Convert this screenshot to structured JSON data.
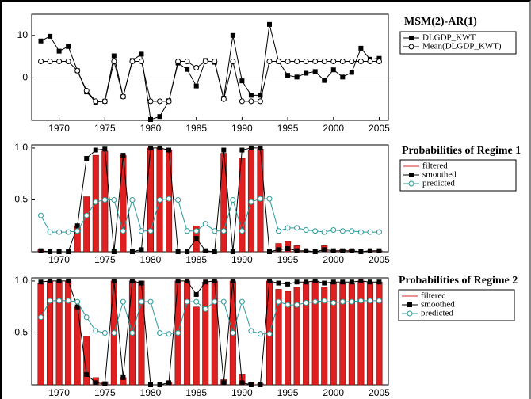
{
  "chart_data": [
    {
      "type": "line",
      "title": "MSM(2)-AR(1)",
      "x": [
        1968,
        1969,
        1970,
        1971,
        1972,
        1973,
        1974,
        1975,
        1976,
        1977,
        1978,
        1979,
        1980,
        1981,
        1982,
        1983,
        1984,
        1985,
        1986,
        1987,
        1988,
        1989,
        1990,
        1991,
        1992,
        1993,
        1994,
        1995,
        1996,
        1997,
        1998,
        1999,
        2000,
        2001,
        2002,
        2003,
        2004,
        2005
      ],
      "xlim": [
        1967,
        2006
      ],
      "xticks": [
        1970,
        1975,
        1980,
        1985,
        1990,
        1995,
        2000,
        2005
      ],
      "ylim": [
        -10,
        15
      ],
      "yticks": [
        0,
        10
      ],
      "zero_line": true,
      "series": [
        {
          "name": "DLGDP_KWT",
          "color": "#000000",
          "marker": "square",
          "values": [
            8.7,
            9.8,
            6.3,
            7.4,
            1.7,
            -3.3,
            -5.7,
            -5.5,
            5.2,
            -4.4,
            4.1,
            5.6,
            -9.8,
            -9.1,
            -5.4,
            3.5,
            2.0,
            -1.9,
            4.1,
            3.7,
            -4.8,
            10,
            -0.7,
            -4.1,
            -4.1,
            12.6,
            3.9,
            0.6,
            0.2,
            1.1,
            1.5,
            -0.6,
            1.9,
            0.2,
            1.3,
            7.0,
            4.4,
            4.6
          ]
        },
        {
          "name": "Mean(DLGDP_KWT)",
          "color": "#000000",
          "marker": "circle",
          "values": [
            3.9,
            3.9,
            3.9,
            3.9,
            1.7,
            -3,
            -5.5,
            -5.5,
            3.9,
            -4.4,
            3.9,
            3.9,
            -5.5,
            -5.5,
            -5.5,
            3.9,
            3.9,
            2.4,
            3.9,
            3.9,
            -5,
            3.9,
            -5.5,
            -5.5,
            -5.5,
            3.9,
            3.9,
            3.9,
            3.9,
            3.9,
            3.9,
            3.9,
            3.9,
            3.9,
            3.9,
            3.9,
            3.9,
            3.9
          ]
        }
      ]
    },
    {
      "type": "combo",
      "title": "Probabilities of Regime 1",
      "x": [
        1968,
        1969,
        1970,
        1971,
        1972,
        1973,
        1974,
        1975,
        1976,
        1977,
        1978,
        1979,
        1980,
        1981,
        1982,
        1983,
        1984,
        1985,
        1986,
        1987,
        1988,
        1989,
        1990,
        1991,
        1992,
        1993,
        1994,
        1995,
        1996,
        1997,
        1998,
        1999,
        2000,
        2001,
        2002,
        2003,
        2004,
        2005
      ],
      "xlim": [
        1967,
        2006
      ],
      "xticks": [
        1970,
        1975,
        1980,
        1985,
        1990,
        1995,
        2000,
        2005
      ],
      "ylim": [
        0,
        1.03
      ],
      "yticks": [
        0.5,
        {
          "value": 1,
          "label": "1.0"
        }
      ],
      "series": [
        {
          "name": "filtered",
          "color": "#e02020",
          "marker": "bar",
          "values": [
            0.02,
            0,
            0,
            0,
            0.25,
            0.53,
            0.93,
            0.97,
            0,
            0.93,
            0,
            0,
            1,
            1,
            0.98,
            0,
            0,
            0.25,
            0.01,
            0,
            0.95,
            0,
            0.9,
            0.98,
            0.99,
            0,
            0.08,
            0.1,
            0.06,
            0.01,
            0,
            0.06,
            0.01,
            0.02,
            0.02,
            0,
            0.01,
            0.01
          ]
        },
        {
          "name": "smoothed",
          "color": "#000000",
          "marker": "square",
          "values": [
            0.01,
            0,
            0,
            0,
            0.25,
            0.9,
            0.98,
            0.99,
            0,
            0.93,
            0,
            0.02,
            1,
            1,
            0.98,
            0,
            0,
            0.13,
            0.01,
            0,
            0.98,
            0,
            0.98,
            1,
            1,
            0,
            0.02,
            0.03,
            0.01,
            0.01,
            0,
            0.02,
            0.01,
            0.01,
            0.01,
            0,
            0.01,
            0.01
          ]
        },
        {
          "name": "predicted",
          "color": "#2a9a9a",
          "marker": "circle",
          "values": [
            0.35,
            0.19,
            0.19,
            0.19,
            0.2,
            0.35,
            0.48,
            0.5,
            0.5,
            0.2,
            0.5,
            0.2,
            0.2,
            0.5,
            0.51,
            0.5,
            0.2,
            0.2,
            0.27,
            0.2,
            0.2,
            0.5,
            0.2,
            0.48,
            0.51,
            0.51,
            0.2,
            0.23,
            0.23,
            0.21,
            0.2,
            0.19,
            0.21,
            0.2,
            0.2,
            0.19,
            0.19,
            0.19
          ]
        }
      ]
    },
    {
      "type": "combo",
      "title": "Probabilities of Regime 2",
      "x": [
        1968,
        1969,
        1970,
        1971,
        1972,
        1973,
        1974,
        1975,
        1976,
        1977,
        1978,
        1979,
        1980,
        1981,
        1982,
        1983,
        1984,
        1985,
        1986,
        1987,
        1988,
        1989,
        1990,
        1991,
        1992,
        1993,
        1994,
        1995,
        1996,
        1997,
        1998,
        1999,
        2000,
        2001,
        2002,
        2003,
        2004,
        2005
      ],
      "xlim": [
        1967,
        2006
      ],
      "xticks": [
        1970,
        1975,
        1980,
        1985,
        1990,
        1995,
        2000,
        2005
      ],
      "ylim": [
        0,
        1.03
      ],
      "yticks": [
        0.5,
        {
          "value": 1,
          "label": "1.0"
        }
      ],
      "series": [
        {
          "name": "filtered",
          "color": "#e02020",
          "marker": "bar",
          "values": [
            0.98,
            1,
            1,
            1,
            0.75,
            0.47,
            0.07,
            0.03,
            1,
            0.07,
            1,
            1,
            0,
            0,
            0.02,
            1,
            1,
            0.75,
            0.99,
            1,
            0.05,
            1,
            0.1,
            0.02,
            0.01,
            1,
            0.92,
            0.9,
            0.94,
            0.99,
            1,
            0.94,
            0.99,
            0.98,
            0.98,
            1,
            0.99,
            0.99
          ]
        },
        {
          "name": "smoothed",
          "color": "#000000",
          "marker": "square",
          "values": [
            0.99,
            1,
            1,
            1,
            0.75,
            0.1,
            0.02,
            0.01,
            1,
            0.07,
            1,
            0.98,
            0,
            0,
            0.02,
            1,
            1,
            0.87,
            0.99,
            1,
            0.02,
            1,
            0.02,
            0,
            0,
            1,
            0.98,
            0.97,
            0.99,
            0.99,
            1,
            0.98,
            0.99,
            0.99,
            0.99,
            1,
            0.99,
            0.99
          ]
        },
        {
          "name": "predicted",
          "color": "#2a9a9a",
          "marker": "circle",
          "values": [
            0.65,
            0.81,
            0.81,
            0.81,
            0.8,
            0.65,
            0.52,
            0.5,
            0.5,
            0.8,
            0.5,
            0.8,
            0.8,
            0.5,
            0.49,
            0.5,
            0.8,
            0.8,
            0.73,
            0.8,
            0.8,
            0.5,
            0.8,
            0.52,
            0.49,
            0.49,
            0.8,
            0.77,
            0.77,
            0.79,
            0.8,
            0.81,
            0.79,
            0.8,
            0.8,
            0.81,
            0.81,
            0.81
          ]
        }
      ]
    }
  ]
}
